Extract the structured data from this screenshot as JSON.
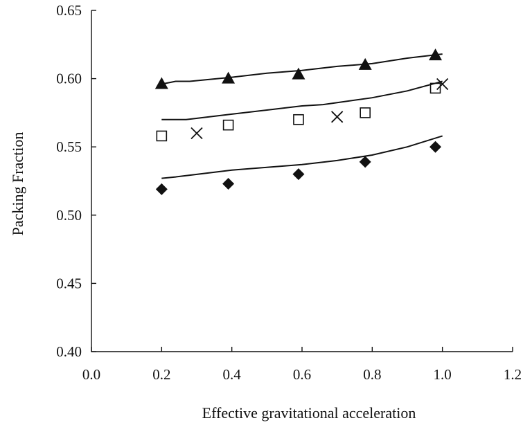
{
  "chart_data": {
    "type": "scatter",
    "title": "",
    "xlabel": "Effective gravitational acceleration",
    "ylabel": "Packing Fraction",
    "xlim": [
      0.0,
      1.2
    ],
    "ylim": [
      0.4,
      0.65
    ],
    "xticks": [
      "0.0",
      "0.2",
      "0.4",
      "0.6",
      "0.8",
      "1.0",
      "1.2"
    ],
    "yticks": [
      "0.40",
      "0.45",
      "0.50",
      "0.55",
      "0.60",
      "0.65"
    ],
    "grid": false,
    "legend": "none",
    "series": [
      {
        "marker": "triangle",
        "x": [
          0.2,
          0.39,
          0.59,
          0.78,
          0.98
        ],
        "y": [
          0.596,
          0.6,
          0.603,
          0.61,
          0.617
        ],
        "color": "#111111"
      },
      {
        "marker": "open-square",
        "x": [
          0.2,
          0.39,
          0.59,
          0.78,
          0.98
        ],
        "y": [
          0.558,
          0.566,
          0.57,
          0.575,
          0.593
        ],
        "color": "#111111"
      },
      {
        "marker": "cross",
        "x": [
          0.3,
          0.7,
          1.0
        ],
        "y": [
          0.56,
          0.572,
          0.596
        ],
        "color": "#111111"
      },
      {
        "marker": "diamond",
        "x": [
          0.2,
          0.39,
          0.59,
          0.78,
          0.98
        ],
        "y": [
          0.519,
          0.523,
          0.53,
          0.539,
          0.55
        ],
        "color": "#111111"
      },
      {
        "marker": "line",
        "x": [
          0.2,
          0.24,
          0.28,
          0.4,
          0.5,
          0.6,
          0.7,
          0.8,
          0.9,
          1.0
        ],
        "y": [
          0.596,
          0.598,
          0.598,
          0.601,
          0.604,
          0.606,
          0.609,
          0.611,
          0.615,
          0.618
        ],
        "color": "#111111"
      },
      {
        "marker": "line",
        "x": [
          0.2,
          0.27,
          0.4,
          0.5,
          0.6,
          0.66,
          0.8,
          0.9,
          1.0
        ],
        "y": [
          0.57,
          0.57,
          0.574,
          0.577,
          0.58,
          0.581,
          0.586,
          0.591,
          0.598
        ],
        "color": "#111111"
      },
      {
        "marker": "line",
        "x": [
          0.2,
          0.24,
          0.4,
          0.5,
          0.6,
          0.7,
          0.8,
          0.9,
          1.0
        ],
        "y": [
          0.527,
          0.528,
          0.533,
          0.535,
          0.537,
          0.54,
          0.544,
          0.55,
          0.558
        ],
        "color": "#111111"
      }
    ]
  }
}
